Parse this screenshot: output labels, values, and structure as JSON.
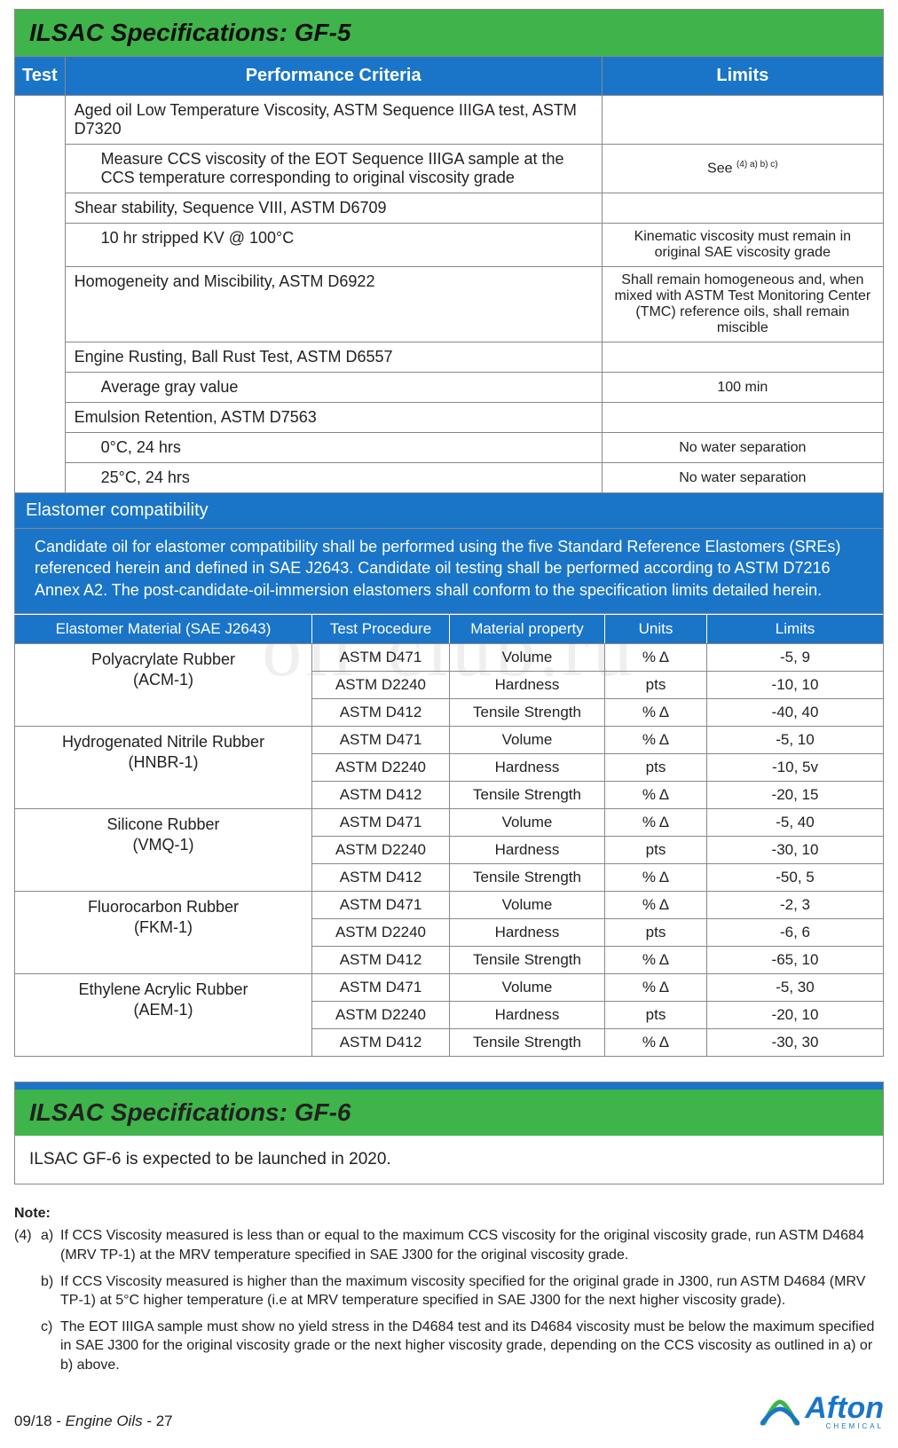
{
  "colors": {
    "green": "#3fb44a",
    "blue": "#1a75c9",
    "border": "#888888",
    "text": "#222222"
  },
  "watermark": "oil-club.ru",
  "gf5": {
    "title": "ILSAC Specifications: GF-5",
    "headers": {
      "test": "Test",
      "criteria": "Performance Criteria",
      "limits": "Limits"
    },
    "rows": [
      {
        "criteria": "Aged oil Low Temperature Viscosity, ASTM Sequence IIIGA test, ASTM D7320",
        "limit": "",
        "sub": false
      },
      {
        "criteria": "Measure CCS viscosity of the EOT Sequence IIIGA sample at the CCS temperature corresponding to original viscosity grade",
        "limit": "See",
        "limit_sup": "(4) a) b) c)",
        "sub": true
      },
      {
        "criteria": "Shear stability, Sequence VIII, ASTM D6709",
        "limit": "",
        "sub": false
      },
      {
        "criteria": "10 hr stripped KV @ 100°C",
        "limit": "Kinematic viscosity must remain in original SAE viscosity grade",
        "sub": true
      },
      {
        "criteria": "Homogeneity and Miscibility, ASTM D6922",
        "limit": "Shall remain homogeneous and, when mixed with ASTM Test Monitoring Center (TMC) reference oils, shall remain miscible",
        "sub": false
      },
      {
        "criteria": "Engine Rusting, Ball Rust Test, ASTM D6557",
        "limit": "",
        "sub": false
      },
      {
        "criteria": "Average gray value",
        "limit": "100 min",
        "sub": true
      },
      {
        "criteria": "Emulsion Retention, ASTM D7563",
        "limit": "",
        "sub": false
      },
      {
        "criteria": "0°C, 24 hrs",
        "limit": "No water separation",
        "sub": true
      },
      {
        "criteria": "25°C, 24 hrs",
        "limit": "No water separation",
        "sub": true
      }
    ],
    "elastomer": {
      "section_title": "Elastomer compatibility",
      "section_body": "Candidate oil for elastomer compatibility shall be performed using the five Standard Reference Elastomers (SREs) referenced herein and defined in SAE J2643. Candidate oil testing shall be performed according to ASTM D7216 Annex A2. The post-candidate-oil-immersion elastomers shall conform to the specification limits detailed herein.",
      "headers": [
        "Elastomer Material (SAE J2643)",
        "Test Procedure",
        "Material property",
        "Units",
        "Limits"
      ],
      "materials": [
        {
          "name": "Polyacrylate Rubber",
          "code": "(ACM-1)",
          "tests": [
            {
              "proc": "ASTM D471",
              "prop": "Volume",
              "units": "% Δ",
              "limits": "-5, 9"
            },
            {
              "proc": "ASTM D2240",
              "prop": "Hardness",
              "units": "pts",
              "limits": "-10, 10"
            },
            {
              "proc": "ASTM D412",
              "prop": "Tensile Strength",
              "units": "% Δ",
              "limits": "-40, 40"
            }
          ]
        },
        {
          "name": "Hydrogenated Nitrile Rubber",
          "code": "(HNBR-1)",
          "tests": [
            {
              "proc": "ASTM D471",
              "prop": "Volume",
              "units": "% Δ",
              "limits": "-5, 10"
            },
            {
              "proc": "ASTM D2240",
              "prop": "Hardness",
              "units": "pts",
              "limits": "-10, 5v"
            },
            {
              "proc": "ASTM D412",
              "prop": "Tensile Strength",
              "units": "% Δ",
              "limits": "-20, 15"
            }
          ]
        },
        {
          "name": "Silicone Rubber",
          "code": "(VMQ-1)",
          "tests": [
            {
              "proc": "ASTM D471",
              "prop": "Volume",
              "units": "% Δ",
              "limits": "-5, 40"
            },
            {
              "proc": "ASTM D2240",
              "prop": "Hardness",
              "units": "pts",
              "limits": "-30, 10"
            },
            {
              "proc": "ASTM D412",
              "prop": "Tensile Strength",
              "units": "% Δ",
              "limits": "-50, 5"
            }
          ]
        },
        {
          "name": "Fluorocarbon Rubber",
          "code": "(FKM-1)",
          "tests": [
            {
              "proc": "ASTM D471",
              "prop": "Volume",
              "units": "% Δ",
              "limits": "-2, 3"
            },
            {
              "proc": "ASTM D2240",
              "prop": "Hardness",
              "units": "pts",
              "limits": "-6, 6"
            },
            {
              "proc": "ASTM D412",
              "prop": "Tensile Strength",
              "units": "% Δ",
              "limits": "-65, 10"
            }
          ]
        },
        {
          "name": "Ethylene Acrylic Rubber",
          "code": "(AEM-1)",
          "tests": [
            {
              "proc": "ASTM D471",
              "prop": "Volume",
              "units": "% Δ",
              "limits": "-5, 30"
            },
            {
              "proc": "ASTM D2240",
              "prop": "Hardness",
              "units": "pts",
              "limits": "-20, 10"
            },
            {
              "proc": "ASTM D412",
              "prop": "Tensile Strength",
              "units": "% Δ",
              "limits": "-30, 30"
            }
          ]
        }
      ]
    }
  },
  "gf6": {
    "title": "ILSAC Specifications: GF-6",
    "body": "ILSAC GF-6 is expected to be launched in 2020."
  },
  "notes": {
    "title": "Note:",
    "items": [
      {
        "num": "(4)",
        "let": "a)",
        "text": "If CCS Viscosity measured is less than or equal to the maximum CCS viscosity for the original viscosity grade, run ASTM D4684 (MRV TP-1) at the MRV temperature specified in SAE J300 for the original viscosity grade."
      },
      {
        "num": "",
        "let": "b)",
        "text": "If CCS Viscosity measured is higher than the maximum viscosity specified for the original grade in J300, run ASTM D4684 (MRV TP-1) at 5°C higher temperature (i.e at MRV temperature specified in SAE J300 for the next higher viscosity grade)."
      },
      {
        "num": "",
        "let": "c)",
        "text": "The EOT IIIGA sample must show no yield stress in the D4684 test and its D4684 viscosity must be below the maximum specified in SAE J300 for the original viscosity grade or the next higher viscosity grade, depending on the CCS viscosity as outlined in a) or b) above."
      }
    ]
  },
  "footer": {
    "left": "09/18 - Engine Oils - 27",
    "logo_name": "Afton",
    "logo_sub": "CHEMICAL"
  }
}
